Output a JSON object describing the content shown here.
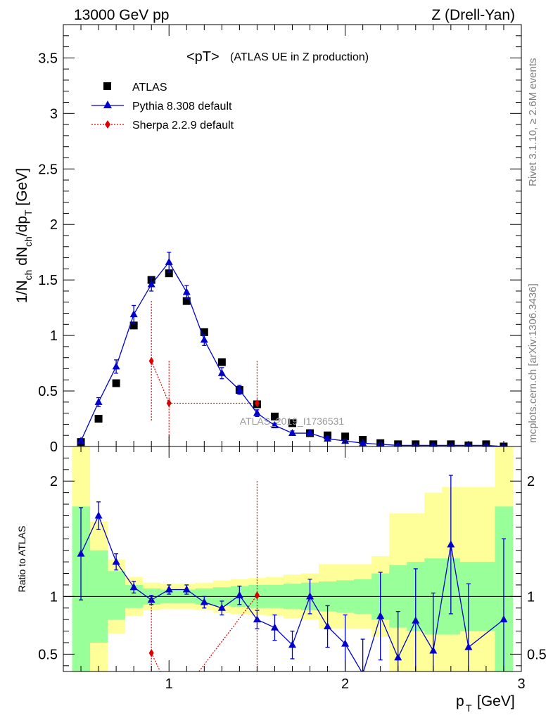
{
  "header": {
    "energy_label": "13000 GeV pp",
    "process_label": "Z (Drell-Yan)"
  },
  "side_labels": {
    "rivet": "Rivet 3.1.10, ≥ 2.6M events",
    "mcplots": "mcplots.cern.ch [arXiv:1306.3436]"
  },
  "chart_data": [
    {
      "type": "scatter",
      "title": "<pT>",
      "subtitle": "(ATLAS UE in Z production)",
      "xlabel_main": "p",
      "xlabel_sub": "T",
      "xlabel_unit": "[GeV]",
      "ylabel": "1/N_ch dN_ch/dp_T [GeV]",
      "watermark": "ATLAS_2019_I1736531",
      "xlim": [
        0.4,
        3.0
      ],
      "ylim": [
        0,
        3.8
      ],
      "xticks": [
        "1",
        "2",
        "3"
      ],
      "yticks": [
        "0",
        "0.5",
        "1",
        "1.5",
        "2",
        "2.5",
        "3",
        "3.5"
      ],
      "legend_position": "top-left",
      "legend": [
        "ATLAS",
        "Pythia 8.308 default",
        "Sherpa 2.2.9 default"
      ],
      "colors": {
        "atlas": "#000000",
        "pythia": "#0000cc",
        "sherpa": "#dd0000"
      },
      "series": [
        {
          "name": "ATLAS",
          "x": [
            0.5,
            0.6,
            0.7,
            0.8,
            0.9,
            1.0,
            1.1,
            1.2,
            1.3,
            1.4,
            1.5,
            1.6,
            1.7,
            1.8,
            1.9,
            2.0,
            2.1,
            2.2,
            2.3,
            2.4,
            2.5,
            2.6,
            2.7,
            2.8,
            2.9
          ],
          "y": [
            0.04,
            0.25,
            0.57,
            1.09,
            1.5,
            1.56,
            1.31,
            1.03,
            0.76,
            0.51,
            0.38,
            0.27,
            0.21,
            0.12,
            0.1,
            0.09,
            0.06,
            0.03,
            0.02,
            0.02,
            0.02,
            0.02,
            0.01,
            0.02,
            0.0
          ]
        },
        {
          "name": "Pythia 8.308 default",
          "x": [
            0.5,
            0.6,
            0.7,
            0.8,
            0.9,
            1.0,
            1.1,
            1.2,
            1.3,
            1.4,
            1.5,
            1.6,
            1.7,
            1.8,
            1.9,
            2.0,
            2.1,
            2.2,
            2.3,
            2.4,
            2.5,
            2.6,
            2.7,
            2.8,
            2.9
          ],
          "y": [
            0.05,
            0.4,
            0.72,
            1.19,
            1.46,
            1.66,
            1.39,
            0.96,
            0.66,
            0.51,
            0.3,
            0.19,
            0.12,
            0.12,
            0.07,
            0.05,
            0.03,
            0.02,
            0.01,
            0.01,
            0.01,
            0.01,
            0.01,
            0.01,
            0.0
          ],
          "yerr": [
            0.02,
            0.04,
            0.06,
            0.08,
            0.06,
            0.09,
            0.06,
            0.05,
            0.05,
            0.04,
            0.03,
            0.02,
            0.02,
            0.02,
            0.02,
            0.01,
            0.01,
            0.01,
            0.01,
            0.01,
            0.01,
            0.01,
            0.01,
            0.01,
            0.01
          ]
        },
        {
          "name": "Sherpa 2.2.9 default",
          "x": [
            0.9,
            1.0,
            1.5
          ],
          "y": [
            0.77,
            0.39,
            0.39
          ],
          "yerr_low": [
            0.54,
            0.39,
            0.01
          ],
          "yerr_high": [
            0.54,
            0.38,
            0.38
          ]
        }
      ]
    },
    {
      "type": "line",
      "ylabel": "Ratio to ATLAS",
      "xlim": [
        0.4,
        3.0
      ],
      "ylim": [
        0.35,
        2.3
      ],
      "xticks": [
        "1",
        "2",
        "3"
      ],
      "yticks": [
        "0.5",
        "1",
        "2"
      ],
      "reference_line": 1,
      "colors": {
        "band_inner": "#99ff99",
        "band_outer": "#ffff99"
      },
      "bands": {
        "x_edges": [
          0.45,
          0.55,
          0.65,
          0.75,
          0.85,
          0.95,
          1.05,
          1.15,
          1.25,
          1.35,
          1.45,
          1.55,
          1.65,
          1.75,
          1.85,
          1.95,
          2.05,
          2.15,
          2.25,
          2.35,
          2.45,
          2.55,
          2.65,
          2.75,
          2.85,
          2.95
        ],
        "inner_high": [
          1.78,
          1.4,
          1.22,
          1.1,
          1.07,
          1.06,
          1.06,
          1.07,
          1.08,
          1.09,
          1.1,
          1.1,
          1.11,
          1.12,
          1.13,
          1.14,
          1.15,
          1.2,
          1.27,
          1.3,
          1.33,
          1.33,
          1.3,
          1.3,
          1.78
        ],
        "inner_low": [
          0.35,
          0.6,
          0.8,
          0.9,
          0.93,
          0.94,
          0.94,
          0.93,
          0.92,
          0.91,
          0.9,
          0.9,
          0.89,
          0.88,
          0.87,
          0.86,
          0.85,
          0.8,
          0.73,
          0.7,
          0.67,
          0.67,
          0.7,
          0.7,
          0.35
        ],
        "outer_high": [
          2.3,
          1.65,
          1.32,
          1.17,
          1.12,
          1.11,
          1.11,
          1.12,
          1.14,
          1.15,
          1.16,
          1.17,
          1.19,
          1.2,
          1.28,
          1.28,
          1.28,
          1.35,
          1.72,
          1.72,
          1.9,
          1.95,
          1.95,
          1.95,
          2.3
        ],
        "outer_low": [
          0.35,
          0.35,
          0.68,
          0.83,
          0.88,
          0.89,
          0.89,
          0.88,
          0.86,
          0.85,
          0.84,
          0.83,
          0.81,
          0.8,
          0.72,
          0.72,
          0.72,
          0.65,
          0.35,
          0.35,
          0.35,
          0.35,
          0.35,
          0.35,
          0.35
        ]
      },
      "series": [
        {
          "name": "Pythia 8.308 default",
          "x": [
            0.5,
            0.6,
            0.7,
            0.8,
            0.9,
            1.0,
            1.1,
            1.2,
            1.3,
            1.4,
            1.5,
            1.6,
            1.7,
            1.8,
            1.9,
            2.0,
            2.1,
            2.2,
            2.3,
            2.4,
            2.5,
            2.6,
            2.7,
            2.9
          ],
          "y": [
            1.37,
            1.7,
            1.3,
            1.08,
            0.97,
            1.06,
            1.06,
            0.95,
            0.9,
            1.01,
            0.8,
            0.73,
            0.58,
            1.0,
            0.74,
            0.59,
            0.33,
            0.83,
            0.47,
            0.79,
            0.53,
            1.45,
            0.56,
            0.8
          ],
          "yerr": [
            0.4,
            0.12,
            0.07,
            0.05,
            0.04,
            0.04,
            0.04,
            0.05,
            0.06,
            0.08,
            0.08,
            0.11,
            0.12,
            0.15,
            0.18,
            0.25,
            0.3,
            0.38,
            0.4,
            0.45,
            0.5,
            0.6,
            0.55,
            0.7
          ]
        },
        {
          "name": "Sherpa 2.2.9 default",
          "x": [
            0.9,
            1.0,
            1.5
          ],
          "y": [
            0.51,
            0.25,
            1.01
          ],
          "segments": [
            {
              "x": [
                0.9,
                0.95
              ],
              "y": [
                0.51,
                0.35
              ]
            },
            {
              "x": [
                1.17,
                1.5
              ],
              "y": [
                0.35,
                1.01
              ]
            }
          ],
          "yerr_bars": [
            {
              "x": 0.9,
              "low": 0.35,
              "high": 0.98
            },
            {
              "x": 1.5,
              "low": 0.35,
              "high": 2.0
            }
          ]
        }
      ]
    }
  ]
}
